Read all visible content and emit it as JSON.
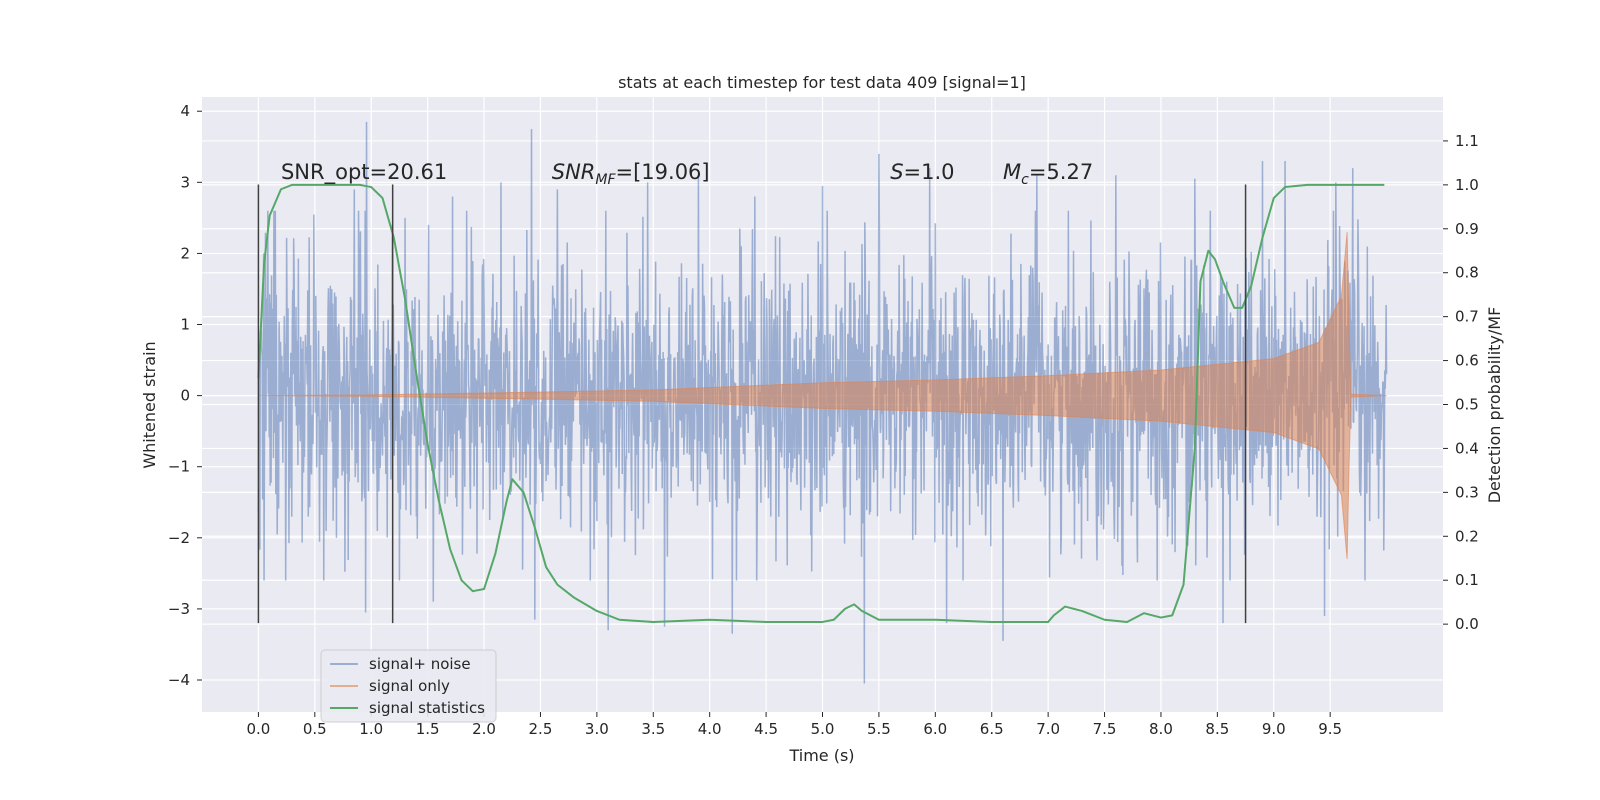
{
  "chart_data": {
    "type": "line",
    "title": "stats at each timestep for test data 409 [signal=1]",
    "xlabel": "Time (s)",
    "ylabel": "Whitened strain",
    "y2label": "Detection probability/MF",
    "xlim": [
      -0.5,
      10.5
    ],
    "ylim": [
      -4.45,
      4.2
    ],
    "y2lim": [
      -0.2,
      1.2
    ],
    "xticks": [
      0.0,
      0.5,
      1.0,
      1.5,
      2.0,
      2.5,
      3.0,
      3.5,
      4.0,
      4.5,
      5.0,
      5.5,
      6.0,
      6.5,
      7.0,
      7.5,
      8.0,
      8.5,
      9.0,
      9.5
    ],
    "yticks": [
      -4,
      -3,
      -2,
      -1,
      0,
      1,
      2,
      3,
      4
    ],
    "y2ticks": [
      0.0,
      0.1,
      0.2,
      0.3,
      0.4,
      0.5,
      0.6,
      0.7,
      0.8,
      0.9,
      1.0,
      1.1
    ],
    "grid": true,
    "legend_position": "lower-left",
    "colors": {
      "noise": "#4c72b0",
      "signal": "#dd8452",
      "stats": "#55a868",
      "vline": "#404040",
      "background": "#eaeaf2"
    },
    "annotations": [
      {
        "text": "SNR_opt=20.61",
        "x": 0.2,
        "y": 3.05
      },
      {
        "text": "SNR_MF=[19.06]",
        "x": 2.6,
        "y": 3.05
      },
      {
        "text": "S=1.0",
        "x": 5.6,
        "y": 3.05
      },
      {
        "text": "M_c=5.27",
        "x": 6.6,
        "y": 3.05
      }
    ],
    "vlines": [
      0.0,
      1.19,
      8.75
    ],
    "series": [
      {
        "name": "signal+ noise",
        "kind": "noise",
        "x_range": [
          0.0,
          10.0
        ],
        "amplitude_typical": 1.2,
        "peaks": [
          [
            0.05,
            1.7
          ],
          [
            0.85,
            2.9
          ],
          [
            0.96,
            3.85
          ],
          [
            1.3,
            2.5
          ],
          [
            1.72,
            2.8
          ],
          [
            2.15,
            3.0
          ],
          [
            2.42,
            3.75
          ],
          [
            2.65,
            2.9
          ],
          [
            3.45,
            3.0
          ],
          [
            3.9,
            3.1
          ],
          [
            4.4,
            2.8
          ],
          [
            5.0,
            2.95
          ],
          [
            5.5,
            3.4
          ],
          [
            5.95,
            3.2
          ],
          [
            6.9,
            3.1
          ],
          [
            7.6,
            3.1
          ],
          [
            8.3,
            3.05
          ],
          [
            8.9,
            3.3
          ],
          [
            9.1,
            3.3
          ],
          [
            9.55,
            3.0
          ],
          [
            9.7,
            3.2
          ],
          [
            0.05,
            -2.6
          ],
          [
            0.95,
            -3.05
          ],
          [
            1.55,
            -2.9
          ],
          [
            2.45,
            -3.15
          ],
          [
            3.1,
            -3.3
          ],
          [
            3.6,
            -3.25
          ],
          [
            4.2,
            -3.35
          ],
          [
            5.37,
            -4.05
          ],
          [
            6.1,
            -3.2
          ],
          [
            6.6,
            -3.45
          ],
          [
            8.55,
            -3.2
          ],
          [
            9.45,
            -3.1
          ]
        ]
      },
      {
        "name": "signal only",
        "kind": "chirp",
        "x_range": [
          0.0,
          10.0
        ],
        "envelope": [
          [
            0.0,
            0.0
          ],
          [
            1.0,
            0.01
          ],
          [
            2.5,
            0.05
          ],
          [
            3.5,
            0.08
          ],
          [
            5.0,
            0.18
          ],
          [
            6.0,
            0.22
          ],
          [
            7.0,
            0.28
          ],
          [
            8.0,
            0.36
          ],
          [
            9.0,
            0.52
          ],
          [
            9.4,
            0.75
          ],
          [
            9.6,
            1.4
          ],
          [
            9.65,
            2.3
          ],
          [
            9.68,
            0.02
          ],
          [
            10.0,
            0.0
          ]
        ]
      },
      {
        "name": "signal statistics",
        "kind": "stats",
        "points": [
          [
            0.0,
            0.56
          ],
          [
            0.05,
            0.82
          ],
          [
            0.1,
            0.93
          ],
          [
            0.2,
            0.99
          ],
          [
            0.3,
            1.0
          ],
          [
            0.9,
            1.0
          ],
          [
            1.0,
            0.995
          ],
          [
            1.1,
            0.97
          ],
          [
            1.2,
            0.88
          ],
          [
            1.3,
            0.74
          ],
          [
            1.4,
            0.57
          ],
          [
            1.5,
            0.41
          ],
          [
            1.6,
            0.28
          ],
          [
            1.7,
            0.17
          ],
          [
            1.8,
            0.1
          ],
          [
            1.9,
            0.075
          ],
          [
            2.0,
            0.08
          ],
          [
            2.1,
            0.16
          ],
          [
            2.2,
            0.28
          ],
          [
            2.25,
            0.33
          ],
          [
            2.35,
            0.3
          ],
          [
            2.45,
            0.22
          ],
          [
            2.55,
            0.13
          ],
          [
            2.65,
            0.09
          ],
          [
            2.8,
            0.06
          ],
          [
            3.0,
            0.03
          ],
          [
            3.2,
            0.01
          ],
          [
            3.5,
            0.005
          ],
          [
            4.0,
            0.01
          ],
          [
            4.5,
            0.005
          ],
          [
            5.0,
            0.005
          ],
          [
            5.1,
            0.01
          ],
          [
            5.2,
            0.035
          ],
          [
            5.28,
            0.045
          ],
          [
            5.35,
            0.03
          ],
          [
            5.5,
            0.01
          ],
          [
            6.0,
            0.01
          ],
          [
            6.5,
            0.005
          ],
          [
            7.0,
            0.005
          ],
          [
            7.05,
            0.02
          ],
          [
            7.15,
            0.04
          ],
          [
            7.3,
            0.03
          ],
          [
            7.5,
            0.01
          ],
          [
            7.7,
            0.005
          ],
          [
            7.85,
            0.025
          ],
          [
            8.0,
            0.015
          ],
          [
            8.1,
            0.02
          ],
          [
            8.2,
            0.09
          ],
          [
            8.3,
            0.4
          ],
          [
            8.35,
            0.78
          ],
          [
            8.42,
            0.85
          ],
          [
            8.48,
            0.83
          ],
          [
            8.55,
            0.78
          ],
          [
            8.65,
            0.72
          ],
          [
            8.72,
            0.72
          ],
          [
            8.8,
            0.77
          ],
          [
            8.9,
            0.88
          ],
          [
            9.0,
            0.97
          ],
          [
            9.1,
            0.995
          ],
          [
            9.3,
            1.0
          ],
          [
            9.98,
            1.0
          ]
        ]
      }
    ]
  }
}
